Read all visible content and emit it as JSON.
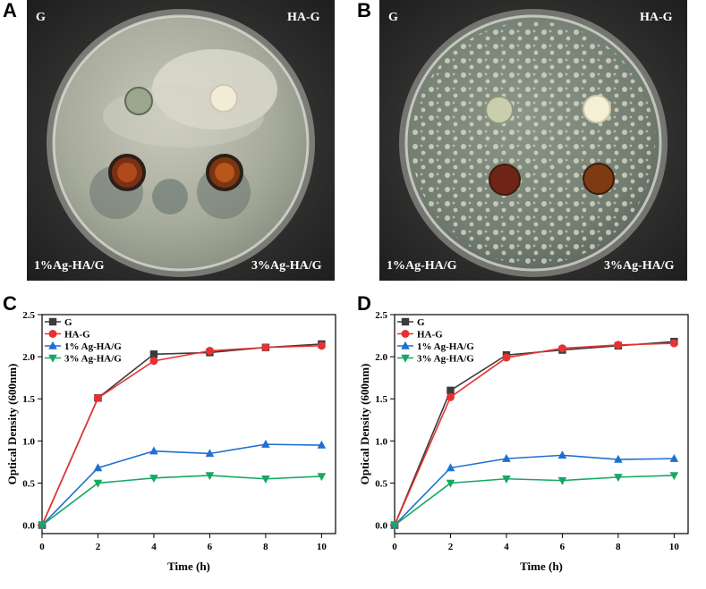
{
  "panels": {
    "a": {
      "letter": "A",
      "labels": {
        "top_left": "G",
        "top_right": "HA-G",
        "bottom_left": "1%Ag-HA/G",
        "bottom_right": "3%Ag-HA/G"
      }
    },
    "b": {
      "letter": "B",
      "labels": {
        "top_left": "G",
        "top_right": "HA-G",
        "bottom_left": "1%Ag-HA/G",
        "bottom_right": "3%Ag-HA/G"
      }
    },
    "c": {
      "letter": "C"
    },
    "d": {
      "letter": "D"
    }
  },
  "chart_data": [
    {
      "type": "line",
      "title": "",
      "xlabel": "Time (h)",
      "ylabel": "Optical Density (600nm)",
      "xlim": [
        0,
        10.5
      ],
      "ylim": [
        -0.1,
        2.5
      ],
      "xticks": [
        0,
        2,
        4,
        6,
        8,
        10
      ],
      "yticks": [
        "0.0",
        "0.5",
        "1.0",
        "1.5",
        "2.0",
        "2.5"
      ],
      "x": [
        0,
        2,
        4,
        6,
        8,
        10
      ],
      "legend_position": "top-left",
      "grid": false,
      "series": [
        {
          "name": "G",
          "color": "#3b3b3b",
          "marker": "square",
          "values": [
            0,
            1.51,
            2.03,
            2.05,
            2.11,
            2.15
          ]
        },
        {
          "name": "HA-G",
          "color": "#e63232",
          "marker": "circle",
          "values": [
            0,
            1.51,
            1.95,
            2.07,
            2.11,
            2.13
          ]
        },
        {
          "name": "1% Ag-HA/G",
          "color": "#1f6fd1",
          "marker": "triangle-up",
          "values": [
            0,
            0.68,
            0.88,
            0.85,
            0.96,
            0.95
          ]
        },
        {
          "name": "3% Ag-HA/G",
          "color": "#17a864",
          "marker": "triangle-down",
          "values": [
            0,
            0.5,
            0.56,
            0.59,
            0.55,
            0.58
          ]
        }
      ]
    },
    {
      "type": "line",
      "title": "",
      "xlabel": "Time (h)",
      "ylabel": "Optical Density (600nm)",
      "xlim": [
        0,
        10.5
      ],
      "ylim": [
        -0.1,
        2.5
      ],
      "xticks": [
        0,
        2,
        4,
        6,
        8,
        10
      ],
      "yticks": [
        "0.0",
        "0.5",
        "1.0",
        "1.5",
        "2.0",
        "2.5"
      ],
      "x": [
        0,
        2,
        4,
        6,
        8,
        10
      ],
      "legend_position": "top-left",
      "grid": false,
      "series": [
        {
          "name": "G",
          "color": "#3b3b3b",
          "marker": "square",
          "values": [
            0,
            1.6,
            2.02,
            2.08,
            2.13,
            2.18
          ]
        },
        {
          "name": "HA-G",
          "color": "#e63232",
          "marker": "circle",
          "values": [
            0,
            1.52,
            1.99,
            2.1,
            2.14,
            2.16
          ]
        },
        {
          "name": "1% Ag-HA/G",
          "color": "#1f6fd1",
          "marker": "triangle-up",
          "values": [
            0,
            0.68,
            0.79,
            0.83,
            0.78,
            0.79
          ]
        },
        {
          "name": "3% Ag-HA/G",
          "color": "#17a864",
          "marker": "triangle-down",
          "values": [
            0,
            0.5,
            0.55,
            0.53,
            0.57,
            0.59
          ]
        }
      ]
    }
  ]
}
